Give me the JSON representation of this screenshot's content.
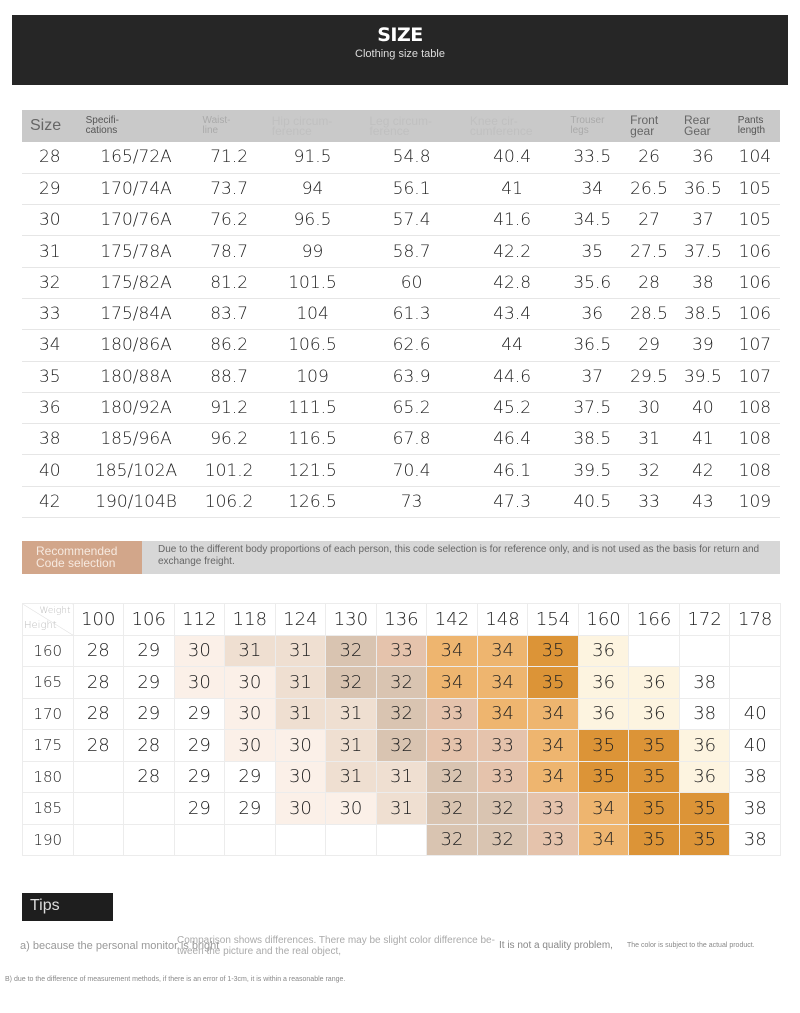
{
  "header": {
    "title": "SIZE",
    "subtitle": "Clothing size table"
  },
  "size_table": {
    "headers": [
      "Size",
      "Specifi-\ncations",
      "Waist-\nline",
      "Hip circum-\nference",
      "Leg circum-\nference",
      "Knee cir-\ncumference",
      "Trouser\nlegs",
      "Front\ngear",
      "Rear\nGear",
      "Pants\nlength"
    ],
    "rows": [
      [
        "28",
        "165/72A",
        "71.2",
        "91.5",
        "54.8",
        "40.4",
        "33.5",
        "26",
        "36",
        "104"
      ],
      [
        "29",
        "170/74A",
        "73.7",
        "94",
        "56.1",
        "41",
        "34",
        "26.5",
        "36.5",
        "105"
      ],
      [
        "30",
        "170/76A",
        "76.2",
        "96.5",
        "57.4",
        "41.6",
        "34.5",
        "27",
        "37",
        "105"
      ],
      [
        "31",
        "175/78A",
        "78.7",
        "99",
        "58.7",
        "42.2",
        "35",
        "27.5",
        "37.5",
        "106"
      ],
      [
        "32",
        "175/82A",
        "81.2",
        "101.5",
        "60",
        "42.8",
        "35.6",
        "28",
        "38",
        "106"
      ],
      [
        "33",
        "175/84A",
        "83.7",
        "104",
        "61.3",
        "43.4",
        "36",
        "28.5",
        "38.5",
        "106"
      ],
      [
        "34",
        "180/86A",
        "86.2",
        "106.5",
        "62.6",
        "44",
        "36.5",
        "29",
        "39",
        "107"
      ],
      [
        "35",
        "180/88A",
        "88.7",
        "109",
        "63.9",
        "44.6",
        "37",
        "29.5",
        "39.5",
        "107"
      ],
      [
        "36",
        "180/92A",
        "91.2",
        "111.5",
        "65.2",
        "45.2",
        "37.5",
        "30",
        "40",
        "108"
      ],
      [
        "38",
        "185/96A",
        "96.2",
        "116.5",
        "67.8",
        "46.4",
        "38.5",
        "31",
        "41",
        "108"
      ],
      [
        "40",
        "185/102A",
        "101.2",
        "121.5",
        "70.4",
        "46.1",
        "39.5",
        "32",
        "42",
        "108"
      ],
      [
        "42",
        "190/104B",
        "106.2",
        "126.5",
        "73",
        "47.3",
        "40.5",
        "33",
        "43",
        "109"
      ]
    ]
  },
  "recommend": {
    "label": "Recommended\nCode selection",
    "note": "Due to the different body proportions of each person, this code selection is for reference only, and is not used as the basis for return and exchange freight."
  },
  "heatmap": {
    "corner_weight": "Weight",
    "corner_height": "Height",
    "weights": [
      "100",
      "106",
      "112",
      "118",
      "124",
      "130",
      "136",
      "142",
      "148",
      "154",
      "160",
      "166",
      "172",
      "178"
    ],
    "rows": [
      {
        "height": "160",
        "sizes": [
          "28",
          "29",
          "30",
          "31",
          "31",
          "32",
          "33",
          "34",
          "34",
          "35",
          "36",
          "",
          "",
          ""
        ]
      },
      {
        "height": "165",
        "sizes": [
          "28",
          "29",
          "30",
          "30",
          "31",
          "32",
          "32",
          "34",
          "34",
          "35",
          "36",
          "36",
          "38",
          ""
        ]
      },
      {
        "height": "170",
        "sizes": [
          "28",
          "29",
          "29",
          "30",
          "31",
          "31",
          "32",
          "33",
          "34",
          "34",
          "36",
          "36",
          "38",
          "40"
        ]
      },
      {
        "height": "175",
        "sizes": [
          "28",
          "28",
          "29",
          "30",
          "30",
          "31",
          "32",
          "33",
          "33",
          "34",
          "35",
          "35",
          "36",
          "40"
        ]
      },
      {
        "height": "180",
        "sizes": [
          "",
          "28",
          "29",
          "29",
          "30",
          "31",
          "31",
          "32",
          "33",
          "34",
          "35",
          "35",
          "36",
          "38"
        ]
      },
      {
        "height": "185",
        "sizes": [
          "",
          "",
          "29",
          "29",
          "30",
          "30",
          "31",
          "32",
          "32",
          "33",
          "34",
          "35",
          "35",
          "38"
        ]
      },
      {
        "height": "190",
        "sizes": [
          "",
          "",
          "",
          "",
          "",
          "",
          "",
          "32",
          "32",
          "33",
          "34",
          "35",
          "35",
          "38"
        ]
      }
    ],
    "colors": {
      "30": "#fbf0e8",
      "31": "#efdfd1",
      "32": "#d9c4b1",
      "33": "#e5c3ac",
      "34": "#eeb56f",
      "35": "#dc9437",
      "36": "#fdf4e0"
    }
  },
  "tips": {
    "title": "Tips",
    "a1": "a) because the personal monitor is bright",
    "a2": "Comparison shows differences. There may be slight color difference be-",
    "a3": "tween the picture and the real object,",
    "a4": "It is not a quality problem,",
    "a5": "The color is subject to the actual product.",
    "b": "B) due to the difference of measurement methods, if there is an error of 1-3cm, it is within a reasonable range."
  }
}
